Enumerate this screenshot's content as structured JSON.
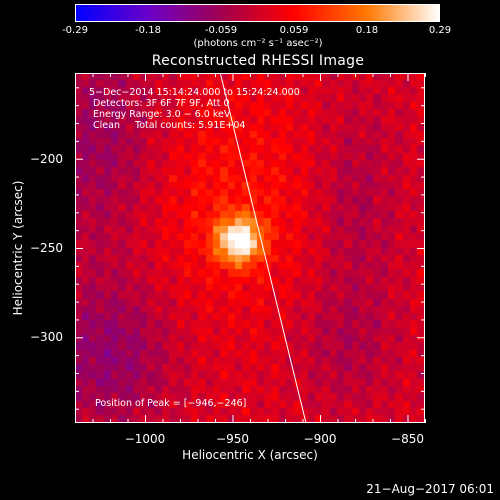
{
  "colorbar": {
    "ticks": [
      "-0.29",
      "-0.18",
      "-0.059",
      "0.059",
      "0.18",
      "0.29"
    ],
    "units": "(photons cm⁻² s⁻¹ asec⁻²)",
    "colors": [
      "#0000ff",
      "#6a00c8",
      "#a00050",
      "#ff0000",
      "#ff7800",
      "#ffffff"
    ]
  },
  "chart_data": {
    "type": "heatmap",
    "title": "Reconstructed RHESSI Image",
    "xlabel": "Heliocentric X (arcsec)",
    "ylabel": "Heliocentric Y (arcsec)",
    "xlim": [
      -1040,
      -840
    ],
    "ylim": [
      -348,
      -152
    ],
    "xticks": [
      -1000,
      -950,
      -900,
      -850
    ],
    "xtick_labels": [
      "−1000",
      "−950",
      "−900",
      "−850"
    ],
    "yticks": [
      -200,
      -250,
      -300
    ],
    "ytick_labels": [
      "−200",
      "−250",
      "−300"
    ],
    "colorbar_range": [
      -0.29,
      0.29
    ],
    "peak": [
      -946,
      -246
    ],
    "limb_line": [
      [
        -957,
        -152
      ],
      [
        -908,
        -348
      ]
    ]
  },
  "annotations": {
    "time": "5−Dec−2014 15:14:24.000 to 15:24:24.000",
    "detectors": "Detectors: 3F 6F 7F 9F, Att 0",
    "energy": "Energy Range: 3.0 − 6.0 keV",
    "clean": "Clean     Total counts: 5.91E+04",
    "peak": "Position of Peak = [−946,−246]"
  },
  "footer": {
    "timestamp": "21−Aug−2017 06:01"
  }
}
